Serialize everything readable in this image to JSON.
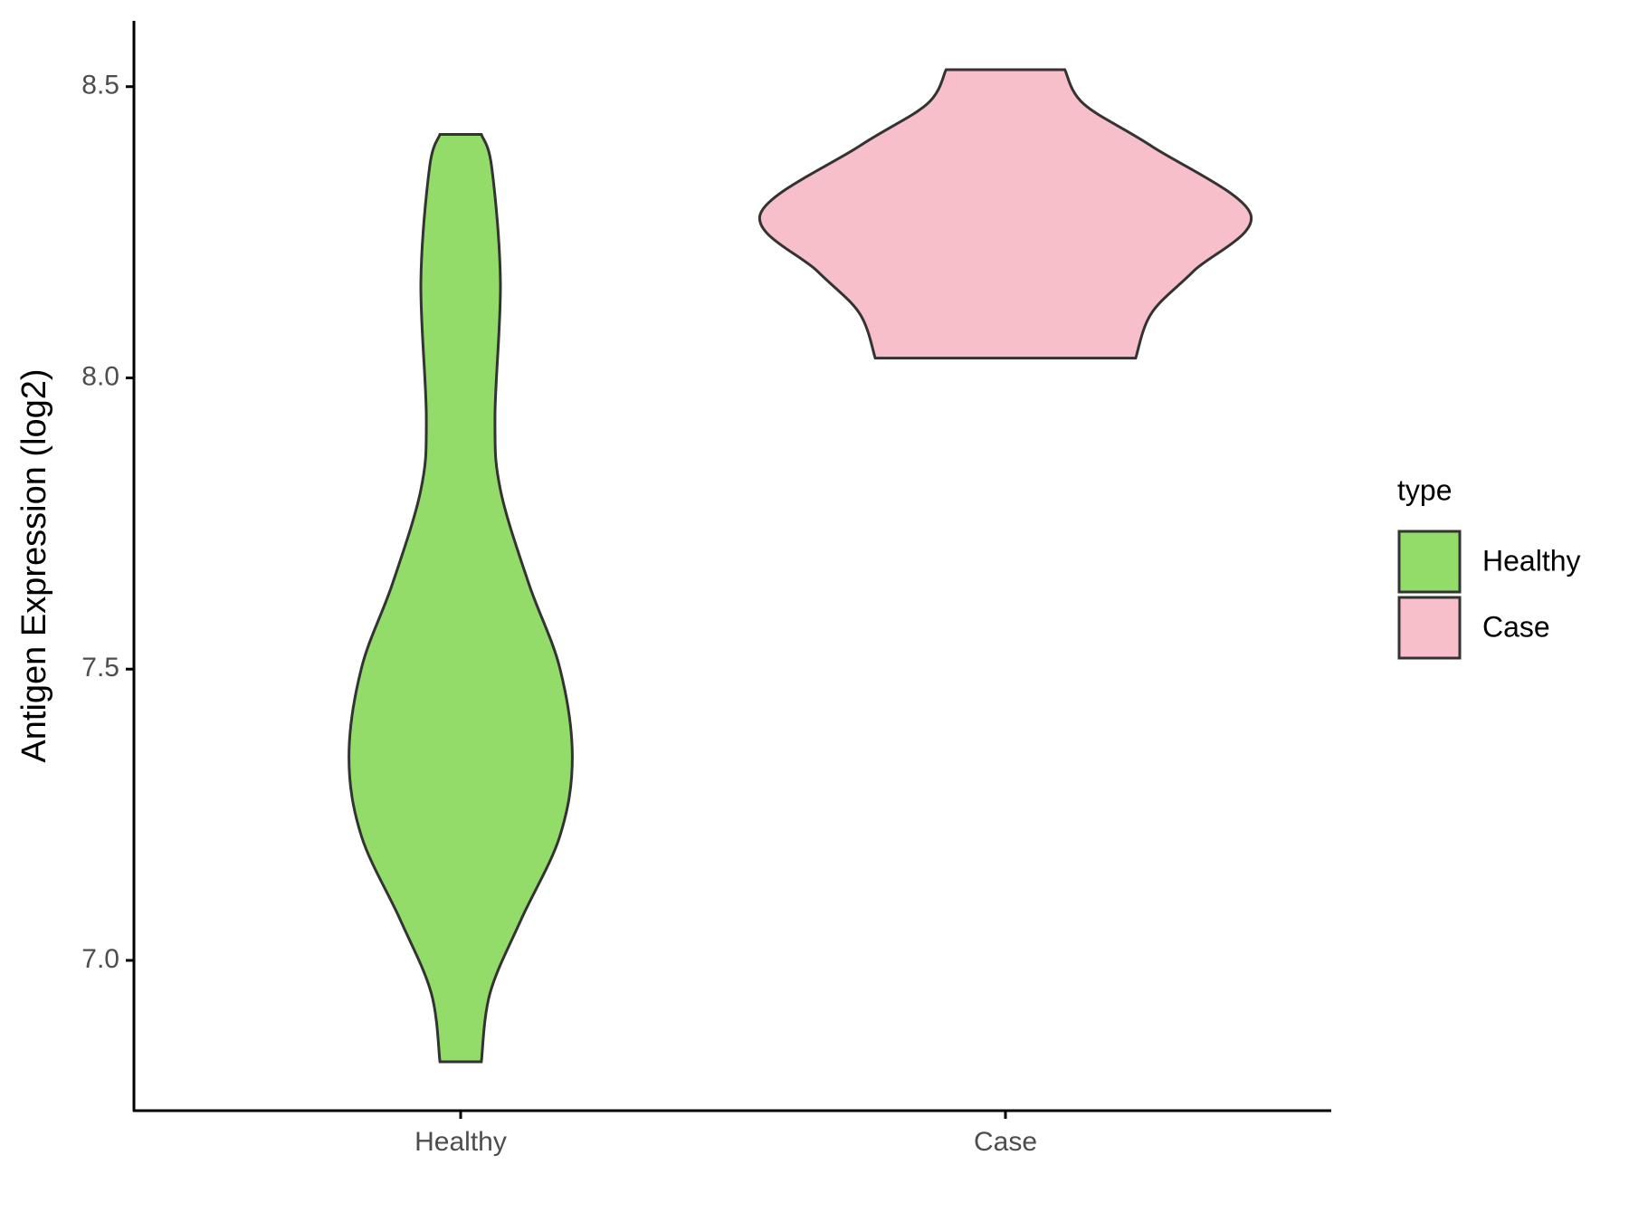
{
  "chart_data": {
    "type": "violin",
    "y_label": "Antigen Expression (log2)",
    "categories": [
      "Healthy",
      "Case"
    ],
    "ylim": [
      6.742,
      8.613
    ],
    "yticks": [
      {
        "value": 7.0,
        "label": "7.0"
      },
      {
        "value": 7.5,
        "label": "7.5"
      },
      {
        "value": 8.0,
        "label": "8.0"
      },
      {
        "value": 8.5,
        "label": "8.5"
      }
    ],
    "legend_title": "type",
    "legend_position": "right",
    "series": [
      {
        "name": "Healthy",
        "color": "#93dc6a",
        "y": [
          8.418,
          8.362,
          8.165,
          7.932,
          7.808,
          7.647,
          7.502,
          7.349,
          7.213,
          7.07,
          6.944,
          6.826
        ],
        "width": [
          0.038,
          0.057,
          0.073,
          0.063,
          0.073,
          0.125,
          0.182,
          0.205,
          0.182,
          0.111,
          0.054,
          0.038
        ]
      },
      {
        "name": "Case",
        "color": "#f7bfca",
        "y": [
          8.529,
          8.47,
          8.398,
          8.281,
          8.183,
          8.111,
          8.034
        ],
        "width": [
          0.109,
          0.144,
          0.268,
          0.45,
          0.345,
          0.268,
          0.239
        ]
      }
    ]
  }
}
